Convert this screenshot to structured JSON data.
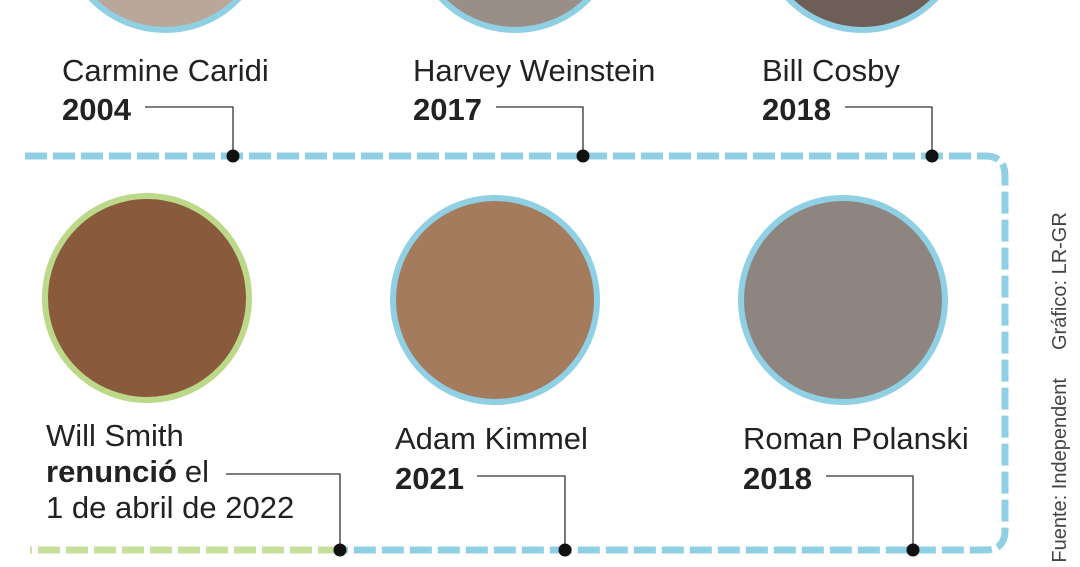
{
  "top": [
    {
      "name": "Carmine Caridi",
      "year": "2004"
    },
    {
      "name": "Harvey Weinstein",
      "year": "2017"
    },
    {
      "name": "Bill Cosby",
      "year": "2018"
    }
  ],
  "bottom": [
    {
      "name": "Will Smith",
      "status": "renunció",
      "status_suffix": "el",
      "date": "1 de abril de 2022"
    },
    {
      "name": "Adam Kimmel",
      "year": "2021"
    },
    {
      "name": "Roman Polanski",
      "year": "2018"
    }
  ],
  "credits": {
    "graphic": "Gráfico: LR-GR",
    "source": "Fuente: Independent"
  }
}
